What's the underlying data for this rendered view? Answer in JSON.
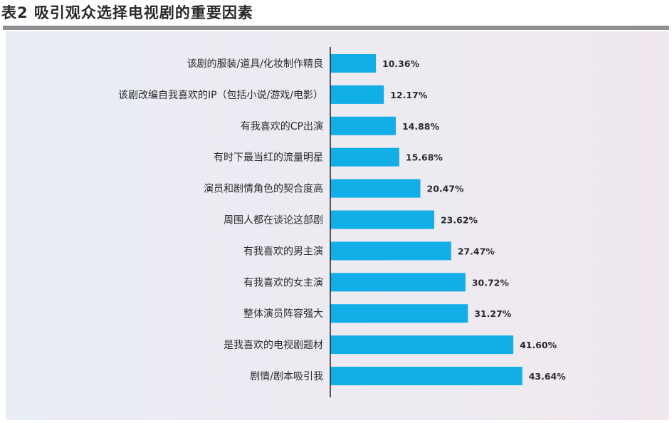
{
  "title": "表2  吸引观众选择电视剧的重要因素",
  "chart_data": {
    "type": "bar",
    "orientation": "horizontal",
    "title": "表2  吸引观众选择电视剧的重要因素",
    "categories": [
      "该剧的服装/道具/化妆制作精良",
      "该剧改编自我喜欢的IP（包括小说/游戏/电影）",
      "有我喜欢的CP出演",
      "有时下最当红的流量明星",
      "演员和剧情角色的契合度高",
      "周围人都在谈论这部剧",
      "有我喜欢的男主演",
      "有我喜欢的女主演",
      "整体演员阵容强大",
      "是我喜欢的电视剧题材",
      "剧情/剧本吸引我"
    ],
    "values": [
      10.36,
      12.17,
      14.88,
      15.68,
      20.47,
      23.62,
      27.47,
      30.72,
      31.27,
      41.6,
      43.64
    ],
    "value_labels": [
      "10.36%",
      "12.17%",
      "14.88%",
      "15.68%",
      "20.47%",
      "23.62%",
      "27.47%",
      "30.72%",
      "31.27%",
      "41.60%",
      "43.64%"
    ],
    "xlim": [
      0,
      50
    ],
    "grid": false,
    "colors": {
      "bar": "#12aee8",
      "axis": "#222222",
      "background_left": "#e9edf5",
      "background_right": "#f1e8ef"
    }
  }
}
